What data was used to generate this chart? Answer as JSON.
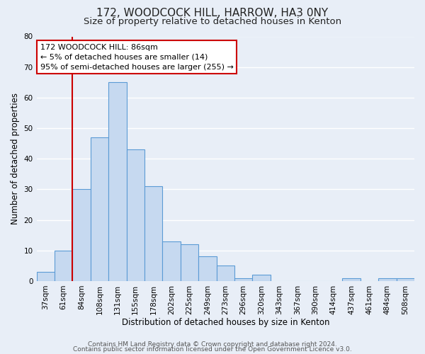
{
  "title": "172, WOODCOCK HILL, HARROW, HA3 0NY",
  "subtitle": "Size of property relative to detached houses in Kenton",
  "xlabel": "Distribution of detached houses by size in Kenton",
  "ylabel": "Number of detached properties",
  "bar_labels": [
    "37sqm",
    "61sqm",
    "84sqm",
    "108sqm",
    "131sqm",
    "155sqm",
    "178sqm",
    "202sqm",
    "225sqm",
    "249sqm",
    "273sqm",
    "296sqm",
    "320sqm",
    "343sqm",
    "367sqm",
    "390sqm",
    "414sqm",
    "437sqm",
    "461sqm",
    "484sqm",
    "508sqm"
  ],
  "bar_values": [
    3,
    10,
    30,
    47,
    65,
    43,
    31,
    13,
    12,
    8,
    5,
    1,
    2,
    0,
    0,
    0,
    0,
    1,
    0,
    1,
    1
  ],
  "bar_color": "#c6d9f0",
  "bar_edge_color": "#5b9bd5",
  "vline_x_index": 2,
  "vline_color": "#cc0000",
  "annotation_line1": "172 WOODCOCK HILL: 86sqm",
  "annotation_line2": "← 5% of detached houses are smaller (14)",
  "annotation_line3": "95% of semi-detached houses are larger (255) →",
  "annotation_box_color": "#ffffff",
  "annotation_box_edge": "#cc0000",
  "ylim": [
    0,
    80
  ],
  "yticks": [
    0,
    10,
    20,
    30,
    40,
    50,
    60,
    70,
    80
  ],
  "footer_line1": "Contains HM Land Registry data © Crown copyright and database right 2024.",
  "footer_line2": "Contains public sector information licensed under the Open Government Licence v3.0.",
  "background_color": "#e8eef7",
  "grid_color": "#ffffff",
  "title_fontsize": 11,
  "subtitle_fontsize": 9.5,
  "axis_label_fontsize": 8.5,
  "tick_fontsize": 7.5,
  "footer_fontsize": 6.5
}
